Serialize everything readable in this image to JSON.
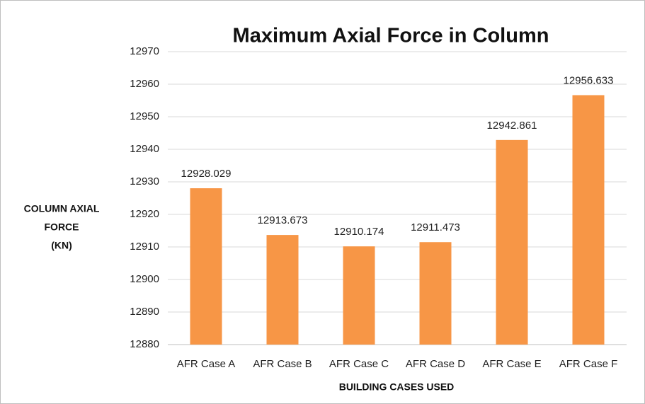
{
  "chart_data": {
    "type": "bar",
    "title": "Maximum Axial Force in Column",
    "xlabel": "BUILDING CASES USED",
    "ylabel": [
      "COLUMN AXIAL",
      "FORCE",
      "(KN)"
    ],
    "categories": [
      "AFR Case A",
      "AFR Case B",
      "AFR Case C",
      "AFR Case D",
      "AFR Case E",
      "AFR Case F"
    ],
    "values": [
      12928.029,
      12913.673,
      12910.174,
      12911.473,
      12942.861,
      12956.633
    ],
    "color": "#f79646",
    "ylim": [
      12880,
      12970
    ],
    "yticks": [
      12880,
      12890,
      12900,
      12910,
      12920,
      12930,
      12940,
      12950,
      12960,
      12970
    ],
    "grid": true
  }
}
